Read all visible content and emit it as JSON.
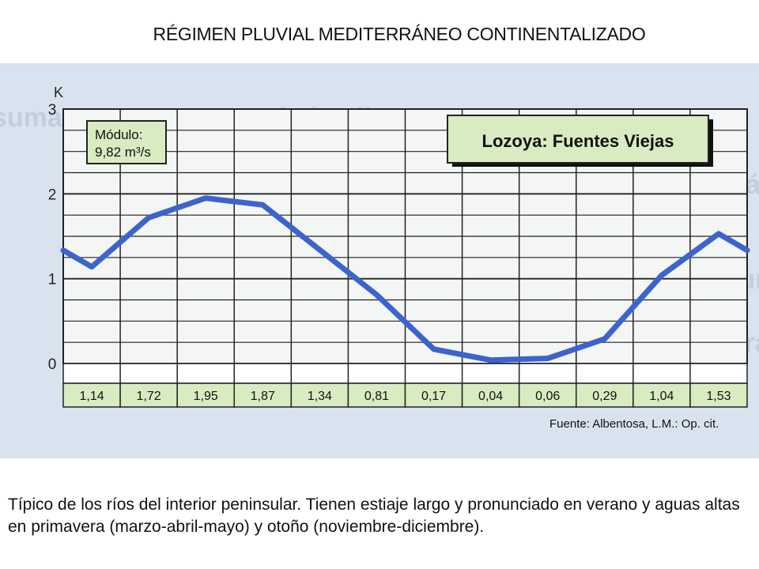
{
  "page_title": "RÉGIMEN PLUVIAL MEDITERRÁNEO CONTINENTALIZADO",
  "caption": "Típico de los ríos del interior peninsular. Tienen estiaje largo y pronunciado en verano y aguas altas en primavera (marzo-abril-mayo) y otoño (noviembre-diciembre).",
  "chart_data": {
    "type": "line",
    "title": "Lozoya: Fuentes Viejas",
    "ylabel": "K",
    "ylim": [
      0,
      3
    ],
    "yticks": [
      "0",
      "1",
      "2",
      "3"
    ],
    "grid": true,
    "module_box": {
      "line1": "Módulo:",
      "line2": "9,82 m³/s"
    },
    "source": "Fuente: Albentosa, L.M.: Op. cit.",
    "table_values": [
      "1,14",
      "1,72",
      "1,95",
      "1,87",
      "1,34",
      "0,81",
      "0,17",
      "0,04",
      "0,06",
      "0,29",
      "1,04",
      "1,53"
    ],
    "series": [
      {
        "values": [
          1.14,
          1.72,
          1.95,
          1.87,
          1.34,
          0.81,
          0.17,
          0.04,
          0.06,
          0.29,
          1.04,
          1.53
        ]
      }
    ],
    "colors": {
      "line": "#3d63cc",
      "label_bg": "#d9ebc0",
      "plot_bg": "#f3f6f4",
      "scan_bg": "#d9e3ef"
    }
  }
}
